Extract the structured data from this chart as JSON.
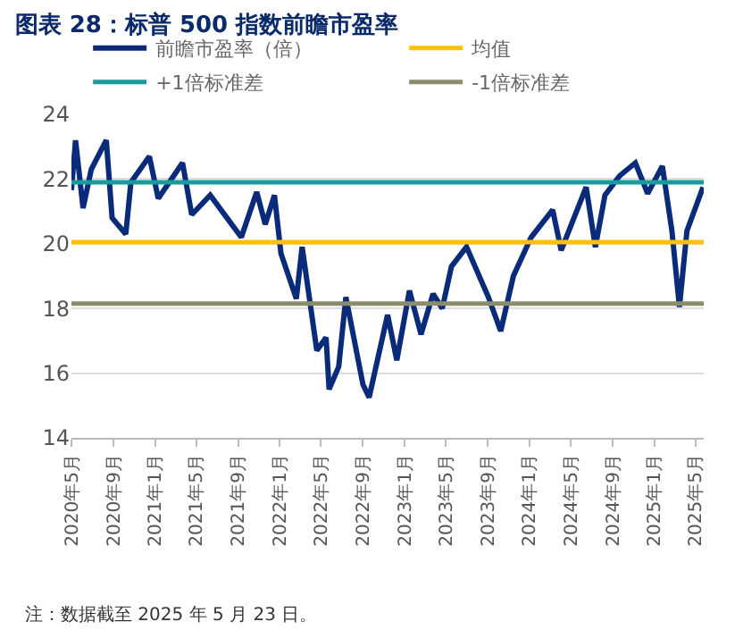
{
  "chart_data": {
    "type": "line",
    "title": "图表 28：标普 500 指数前瞻市盈率",
    "x": [
      "2020-05-01",
      "2020-05-13",
      "2020-06-04",
      "2020-06-28",
      "2020-08-11",
      "2020-08-28",
      "2020-10-07",
      "2020-10-22",
      "2020-12-15",
      "2021-01-10",
      "2021-03-22",
      "2021-04-18",
      "2021-06-11",
      "2021-09-10",
      "2021-10-25",
      "2021-11-19",
      "2021-12-16",
      "2022-01-04",
      "2022-02-18",
      "2022-03-07",
      "2022-04-19",
      "2022-05-16",
      "2022-05-25",
      "2022-06-22",
      "2022-07-13",
      "2022-09-01",
      "2022-09-19",
      "2022-11-12",
      "2022-12-09",
      "2023-01-15",
      "2023-02-18",
      "2023-03-25",
      "2023-04-21",
      "2023-05-18",
      "2023-07-01",
      "2023-09-03",
      "2023-10-09",
      "2023-11-15",
      "2024-01-06",
      "2024-03-09",
      "2024-04-03",
      "2024-06-15",
      "2024-07-12",
      "2024-08-09",
      "2024-09-21",
      "2024-11-06",
      "2024-12-12",
      "2025-01-24",
      "2025-02-21",
      "2025-03-15",
      "2025-04-06",
      "2025-05-23"
    ],
    "series": [
      {
        "name": "前瞻市盈率（倍）",
        "color": "#0a2a7a",
        "values": [
          21.66,
          23.2,
          21.1,
          22.3,
          23.2,
          20.8,
          20.3,
          21.9,
          22.7,
          21.4,
          22.5,
          20.9,
          21.5,
          20.2,
          21.6,
          20.6,
          21.5,
          19.7,
          18.3,
          19.9,
          16.7,
          17.1,
          15.5,
          16.2,
          18.35,
          15.65,
          15.25,
          17.8,
          16.4,
          18.55,
          17.2,
          18.45,
          18.0,
          19.3,
          19.9,
          18.35,
          17.3,
          19.0,
          20.2,
          21.05,
          19.8,
          21.75,
          19.9,
          21.5,
          22.1,
          22.5,
          21.55,
          22.4,
          20.4,
          18.05,
          20.4,
          21.75
        ]
      }
    ],
    "ref_lines": [
      {
        "axis": "y",
        "value": 20.05,
        "label": "均值",
        "color": "#ffc000"
      },
      {
        "axis": "y",
        "value": 21.9,
        "label": "+1倍标准差",
        "color": "#1a9a9a"
      },
      {
        "axis": "y",
        "value": 18.15,
        "label": "-1倍标准差",
        "color": "#8c8c6c"
      }
    ],
    "xlim": [
      "2020-05-01",
      "2025-05-25"
    ],
    "xticks": [
      {
        "value": "2020-05-01",
        "label": "2020年5月"
      },
      {
        "value": "2020-09-01",
        "label": "2020年9月"
      },
      {
        "value": "2021-01-01",
        "label": "2021年1月"
      },
      {
        "value": "2021-05-01",
        "label": "2021年5月"
      },
      {
        "value": "2021-09-01",
        "label": "2021年9月"
      },
      {
        "value": "2022-01-01",
        "label": "2022年1月"
      },
      {
        "value": "2022-05-01",
        "label": "2022年5月"
      },
      {
        "value": "2022-09-01",
        "label": "2022年9月"
      },
      {
        "value": "2023-01-01",
        "label": "2023年1月"
      },
      {
        "value": "2023-05-01",
        "label": "2023年5月"
      },
      {
        "value": "2023-09-01",
        "label": "2023年9月"
      },
      {
        "value": "2024-01-01",
        "label": "2024年1月"
      },
      {
        "value": "2024-05-01",
        "label": "2024年5月"
      },
      {
        "value": "2024-09-01",
        "label": "2024年9月"
      },
      {
        "value": "2025-01-01",
        "label": "2025年1月"
      },
      {
        "value": "2025-05-01",
        "label": "2025年5月"
      }
    ],
    "ylim": [
      14,
      24
    ],
    "yticks": [
      14,
      16,
      18,
      20,
      22,
      24
    ],
    "grid": "y",
    "legend": "top",
    "marker": "none",
    "line_style": "solid",
    "annotations": [
      "注：数据截至 2025 年 5 月 23 日。"
    ]
  }
}
